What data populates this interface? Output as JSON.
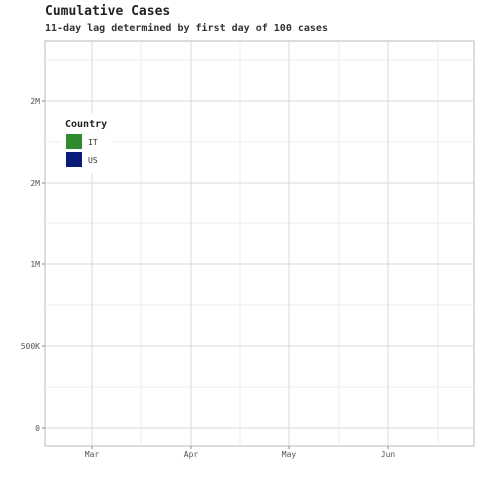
{
  "chart_data": {
    "type": "line",
    "title": "Cumulative Cases",
    "subtitle": "11-day lag determined by first day of 100 cases",
    "xlabel": "",
    "ylabel": "",
    "x_ticks": [
      "Mar",
      "Apr",
      "May",
      "Jun"
    ],
    "y_ticks": [
      "0",
      "500K",
      "1M",
      "2M",
      "2M"
    ],
    "grid": true,
    "legend": {
      "title": "Country",
      "placement": "top-left",
      "entries": [
        {
          "label": "IT",
          "color": "#2e8b2e"
        },
        {
          "label": "US",
          "color": "#0a1a7a"
        }
      ]
    },
    "series": [
      {
        "name": "IT",
        "color": "#2e8b2e",
        "values": []
      },
      {
        "name": "US",
        "color": "#0a1a7a",
        "values": []
      }
    ]
  }
}
